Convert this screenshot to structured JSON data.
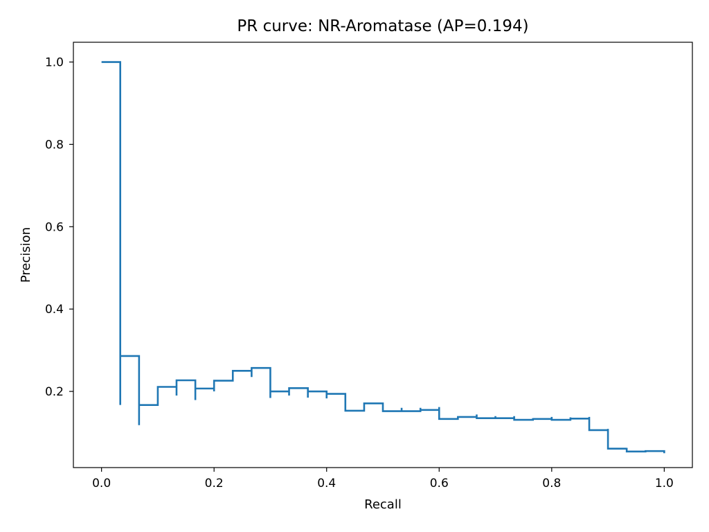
{
  "chart_data": {
    "type": "line",
    "title": "PR curve: NR-Aromatase (AP=0.194)",
    "xlabel": "Recall",
    "ylabel": "Precision",
    "xlim": [
      -0.05,
      1.05
    ],
    "ylim": [
      0.015,
      1.048
    ],
    "xticks": [
      "0.0",
      "0.2",
      "0.4",
      "0.6",
      "0.8",
      "1.0"
    ],
    "yticks": [
      "0.2",
      "0.4",
      "0.6",
      "0.8",
      "1.0"
    ],
    "grid": false,
    "legend": "none",
    "series": [
      {
        "color": "#1f77b4",
        "step": "post",
        "x": [
          0.0,
          0.0333,
          0.0333,
          0.0333,
          0.0667,
          0.0667,
          0.0667,
          0.1,
          0.1333,
          0.1333,
          0.1333,
          0.1667,
          0.1667,
          0.1667,
          0.2,
          0.2,
          0.2,
          0.2333,
          0.2667,
          0.2667,
          0.2667,
          0.3,
          0.3,
          0.3,
          0.3333,
          0.3333,
          0.3333,
          0.3667,
          0.3667,
          0.3667,
          0.4,
          0.4,
          0.4,
          0.4333,
          0.4333,
          0.4667,
          0.5,
          0.5,
          0.5333,
          0.5333,
          0.5667,
          0.5667,
          0.6,
          0.6,
          0.6333,
          0.6667,
          0.6667,
          0.7,
          0.7,
          0.7333,
          0.7333,
          0.7667,
          0.7667,
          0.8,
          0.8,
          0.8333,
          0.8333,
          0.8667,
          0.8667,
          0.9,
          0.9,
          0.9333,
          0.9333,
          0.9667,
          1.0
        ],
        "y": [
          1.0,
          1.0,
          0.167,
          0.286,
          0.286,
          0.118,
          0.167,
          0.211,
          0.211,
          0.19,
          0.227,
          0.227,
          0.179,
          0.207,
          0.207,
          0.2,
          0.226,
          0.25,
          0.25,
          0.235,
          0.257,
          0.257,
          0.184,
          0.2,
          0.2,
          0.19,
          0.208,
          0.208,
          0.185,
          0.2,
          0.2,
          0.183,
          0.194,
          0.194,
          0.153,
          0.171,
          0.171,
          0.152,
          0.16,
          0.152,
          0.16,
          0.155,
          0.162,
          0.133,
          0.138,
          0.144,
          0.135,
          0.14,
          0.135,
          0.14,
          0.131,
          0.135,
          0.133,
          0.138,
          0.131,
          0.137,
          0.134,
          0.138,
          0.106,
          0.109,
          0.061,
          0.063,
          0.054,
          0.055,
          0.05
        ]
      }
    ]
  }
}
